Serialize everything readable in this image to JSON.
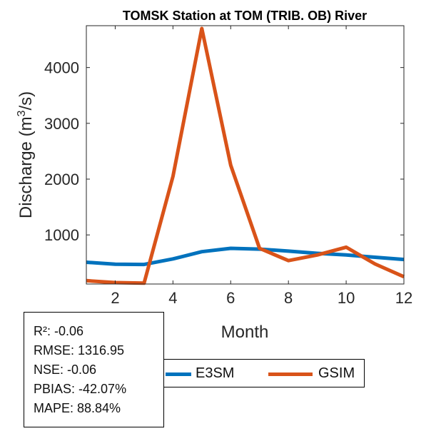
{
  "chart_data": {
    "type": "line",
    "title": "TOMSK  Station at  TOM (TRIB. OB)  River",
    "xlabel": "Month",
    "ylabel_main": "Discharge (m",
    "ylabel_sup": "3",
    "ylabel_tail": "/s)",
    "xlim": [
      1,
      12
    ],
    "ylim": [
      120,
      4750
    ],
    "xticks": [
      "2",
      "4",
      "6",
      "8",
      "10",
      "12"
    ],
    "yticks": [
      "1000",
      "2000",
      "3000",
      "4000"
    ],
    "x": [
      1,
      2,
      3,
      4,
      5,
      6,
      7,
      8,
      9,
      10,
      11,
      12
    ],
    "series": [
      {
        "name": "E3SM",
        "color": "#0072BD",
        "values": [
          510,
          475,
          470,
          570,
          700,
          760,
          745,
          710,
          670,
          640,
          600,
          560
        ]
      },
      {
        "name": "GSIM",
        "color": "#D95319",
        "values": [
          180,
          145,
          135,
          2050,
          4700,
          2250,
          760,
          540,
          640,
          780,
          480,
          250
        ]
      }
    ],
    "legend_position": "bottom"
  },
  "stats": [
    "R²: -0.06",
    "RMSE: 1316.95",
    "NSE: -0.06",
    "PBIAS: -42.07%",
    "MAPE: 88.84%"
  ],
  "legend": {
    "e3sm_label": "E3SM",
    "gsim_label": "GSIM",
    "e3sm_color": "#0072BD",
    "gsim_color": "#D95319"
  }
}
